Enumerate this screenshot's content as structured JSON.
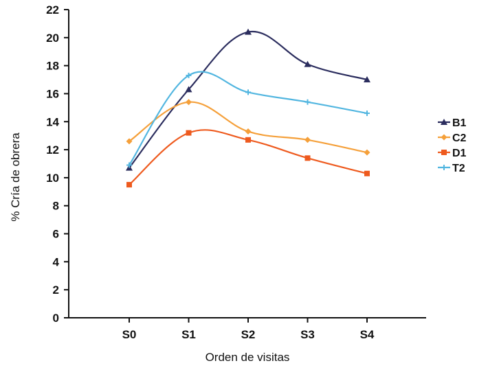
{
  "chart_data": {
    "type": "line",
    "title": "",
    "xlabel": "Orden de visitas",
    "ylabel": "% Cría de obrera",
    "categories": [
      "S0",
      "S1",
      "S2",
      "S3",
      "S4"
    ],
    "ylim": [
      0,
      22
    ],
    "yticks": [
      0,
      2,
      4,
      6,
      8,
      10,
      12,
      14,
      16,
      18,
      20,
      22
    ],
    "grid": false,
    "smooth": true,
    "legend_position": "right",
    "series": [
      {
        "name": "B1",
        "values": [
          10.7,
          16.3,
          20.4,
          18.1,
          17.0
        ],
        "color": "#2b2d5e",
        "marker": "triangle"
      },
      {
        "name": "C2",
        "values": [
          12.6,
          15.4,
          13.3,
          12.7,
          11.8
        ],
        "color": "#f5a03a",
        "marker": "diamond"
      },
      {
        "name": "D1",
        "values": [
          9.5,
          13.2,
          12.7,
          11.4,
          10.3
        ],
        "color": "#ee5a1e",
        "marker": "square"
      },
      {
        "name": "T2",
        "values": [
          10.9,
          17.3,
          16.1,
          15.4,
          14.6
        ],
        "color": "#52b6e0",
        "marker": "plus"
      }
    ]
  }
}
